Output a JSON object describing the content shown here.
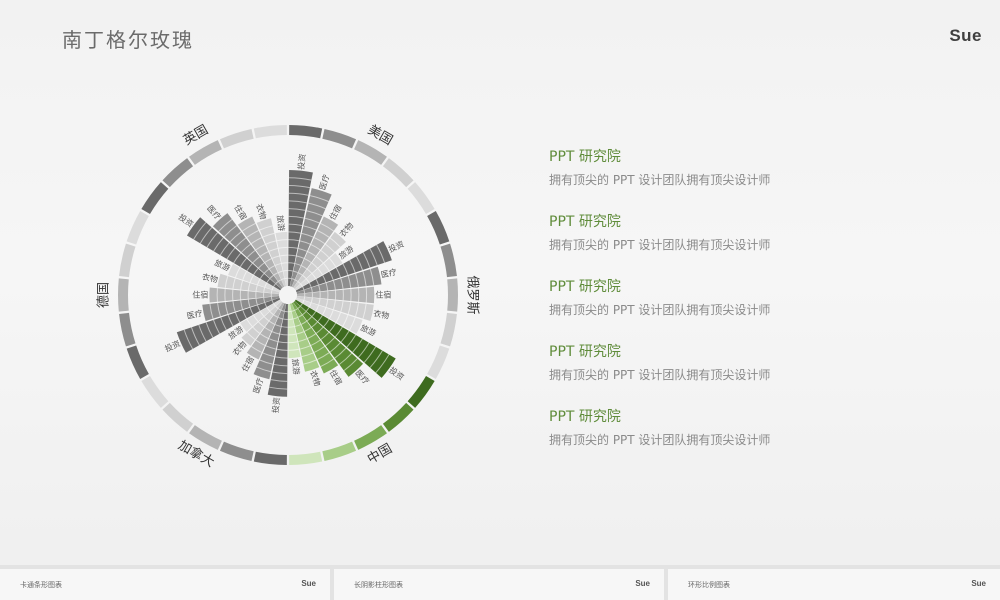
{
  "page": {
    "title": "南丁格尔玫瑰",
    "logo": "Sue"
  },
  "legend": [
    {
      "heading": "PPT 研究院",
      "desc": "拥有顶尖的 PPT 设计团队拥有顶尖设计师"
    },
    {
      "heading": "PPT 研究院",
      "desc": "拥有顶尖的 PPT 设计团队拥有顶尖设计师"
    },
    {
      "heading": "PPT 研究院",
      "desc": "拥有顶尖的 PPT 设计团队拥有顶尖设计师"
    },
    {
      "heading": "PPT 研究院",
      "desc": "拥有顶尖的 PPT 设计团队拥有顶尖设计师"
    },
    {
      "heading": "PPT 研究院",
      "desc": "拥有顶尖的 PPT 设计团队拥有顶尖设计师"
    }
  ],
  "footer": {
    "thumbs": [
      {
        "label": "卡通条形图表",
        "logo": "Sue"
      },
      {
        "label": "长阴影柱形图表",
        "logo": "Sue"
      },
      {
        "label": "环形比例图表",
        "logo": "Sue"
      }
    ]
  },
  "chart_data": {
    "type": "nightingale-rose",
    "title": "南丁格尔玫瑰",
    "groups": [
      {
        "name": "美国",
        "palette": [
          "#6a6a6a",
          "#8e8e8e",
          "#b4b4b4",
          "#d0d0d0",
          "#dcdcdc"
        ],
        "categories": [
          "投资",
          "医疗",
          "住宿",
          "衣物",
          "旅游"
        ],
        "values": [
          15,
          13,
          10,
          9,
          7
        ]
      },
      {
        "name": "俄罗斯",
        "palette": [
          "#6a6a6a",
          "#8e8e8e",
          "#b4b4b4",
          "#d0d0d0",
          "#dcdcdc"
        ],
        "categories": [
          "投资",
          "医疗",
          "住宿",
          "衣物",
          "旅游"
        ],
        "values": [
          13,
          11,
          10,
          10,
          9
        ]
      },
      {
        "name": "中国",
        "palette": [
          "#3e6b1f",
          "#5a8a33",
          "#7cab55",
          "#a8cd88",
          "#cfe5bb"
        ],
        "categories": [
          "投资",
          "医疗",
          "住宿",
          "衣物",
          "旅游"
        ],
        "values": [
          15,
          12,
          10,
          9,
          7
        ]
      },
      {
        "name": "加拿大",
        "palette": [
          "#6a6a6a",
          "#8e8e8e",
          "#b4b4b4",
          "#d0d0d0",
          "#dcdcdc"
        ],
        "categories": [
          "投资",
          "医疗",
          "住宿",
          "衣物",
          "旅游"
        ],
        "values": [
          12,
          10,
          8,
          7,
          6
        ]
      },
      {
        "name": "德国",
        "palette": [
          "#6a6a6a",
          "#8e8e8e",
          "#b4b4b4",
          "#d0d0d0",
          "#dcdcdc"
        ],
        "categories": [
          "投资",
          "医疗",
          "住宿",
          "衣物",
          "旅游"
        ],
        "values": [
          14,
          10,
          9,
          8,
          7
        ]
      },
      {
        "name": "英国",
        "palette": [
          "#6a6a6a",
          "#8e8e8e",
          "#b4b4b4",
          "#d0d0d0",
          "#dcdcdc"
        ],
        "categories": [
          "投资",
          "医疗",
          "住宿",
          "衣物",
          "旅游"
        ],
        "values": [
          14,
          12,
          10,
          9,
          7
        ]
      }
    ]
  }
}
